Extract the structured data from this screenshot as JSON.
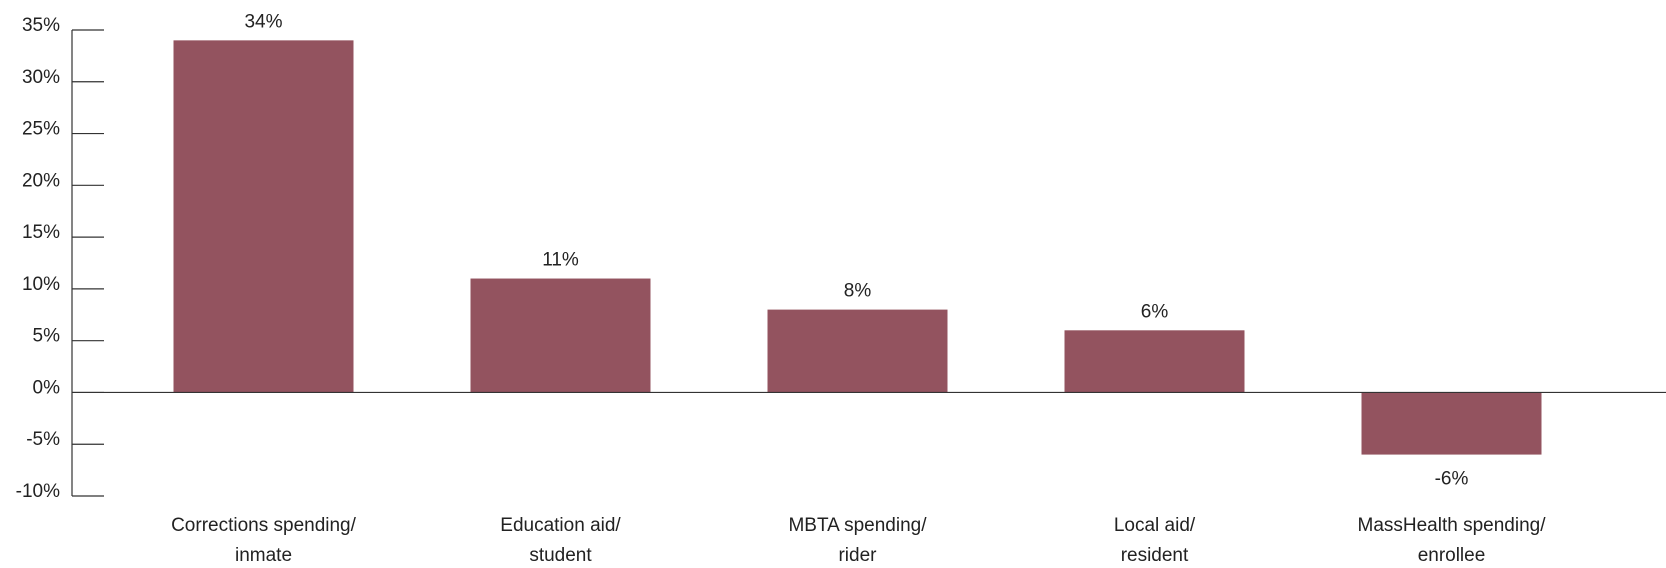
{
  "chart_data": {
    "type": "bar",
    "categories": [
      "Corrections spending/\ninmate",
      "Education aid/\nstudent",
      "MBTA spending/\nrider",
      "Local aid/\nresident",
      "MassHealth spending/\nenrollee"
    ],
    "values": [
      34,
      11,
      8,
      6,
      -6
    ],
    "value_labels": [
      "34%",
      "11%",
      "8%",
      "6%",
      "-6%"
    ],
    "color": "#93535f",
    "ylim": [
      -10,
      35
    ],
    "yticks": [
      {
        "value": -10,
        "label": "-10%"
      },
      {
        "value": -5,
        "label": "-5%"
      },
      {
        "value": 0,
        "label": "0%"
      },
      {
        "value": 5,
        "label": "5%"
      },
      {
        "value": 10,
        "label": "10%"
      },
      {
        "value": 15,
        "label": "15%"
      },
      {
        "value": 20,
        "label": "20%"
      },
      {
        "value": 25,
        "label": "25%"
      },
      {
        "value": 30,
        "label": "30%"
      },
      {
        "value": 35,
        "label": "35%"
      }
    ]
  }
}
